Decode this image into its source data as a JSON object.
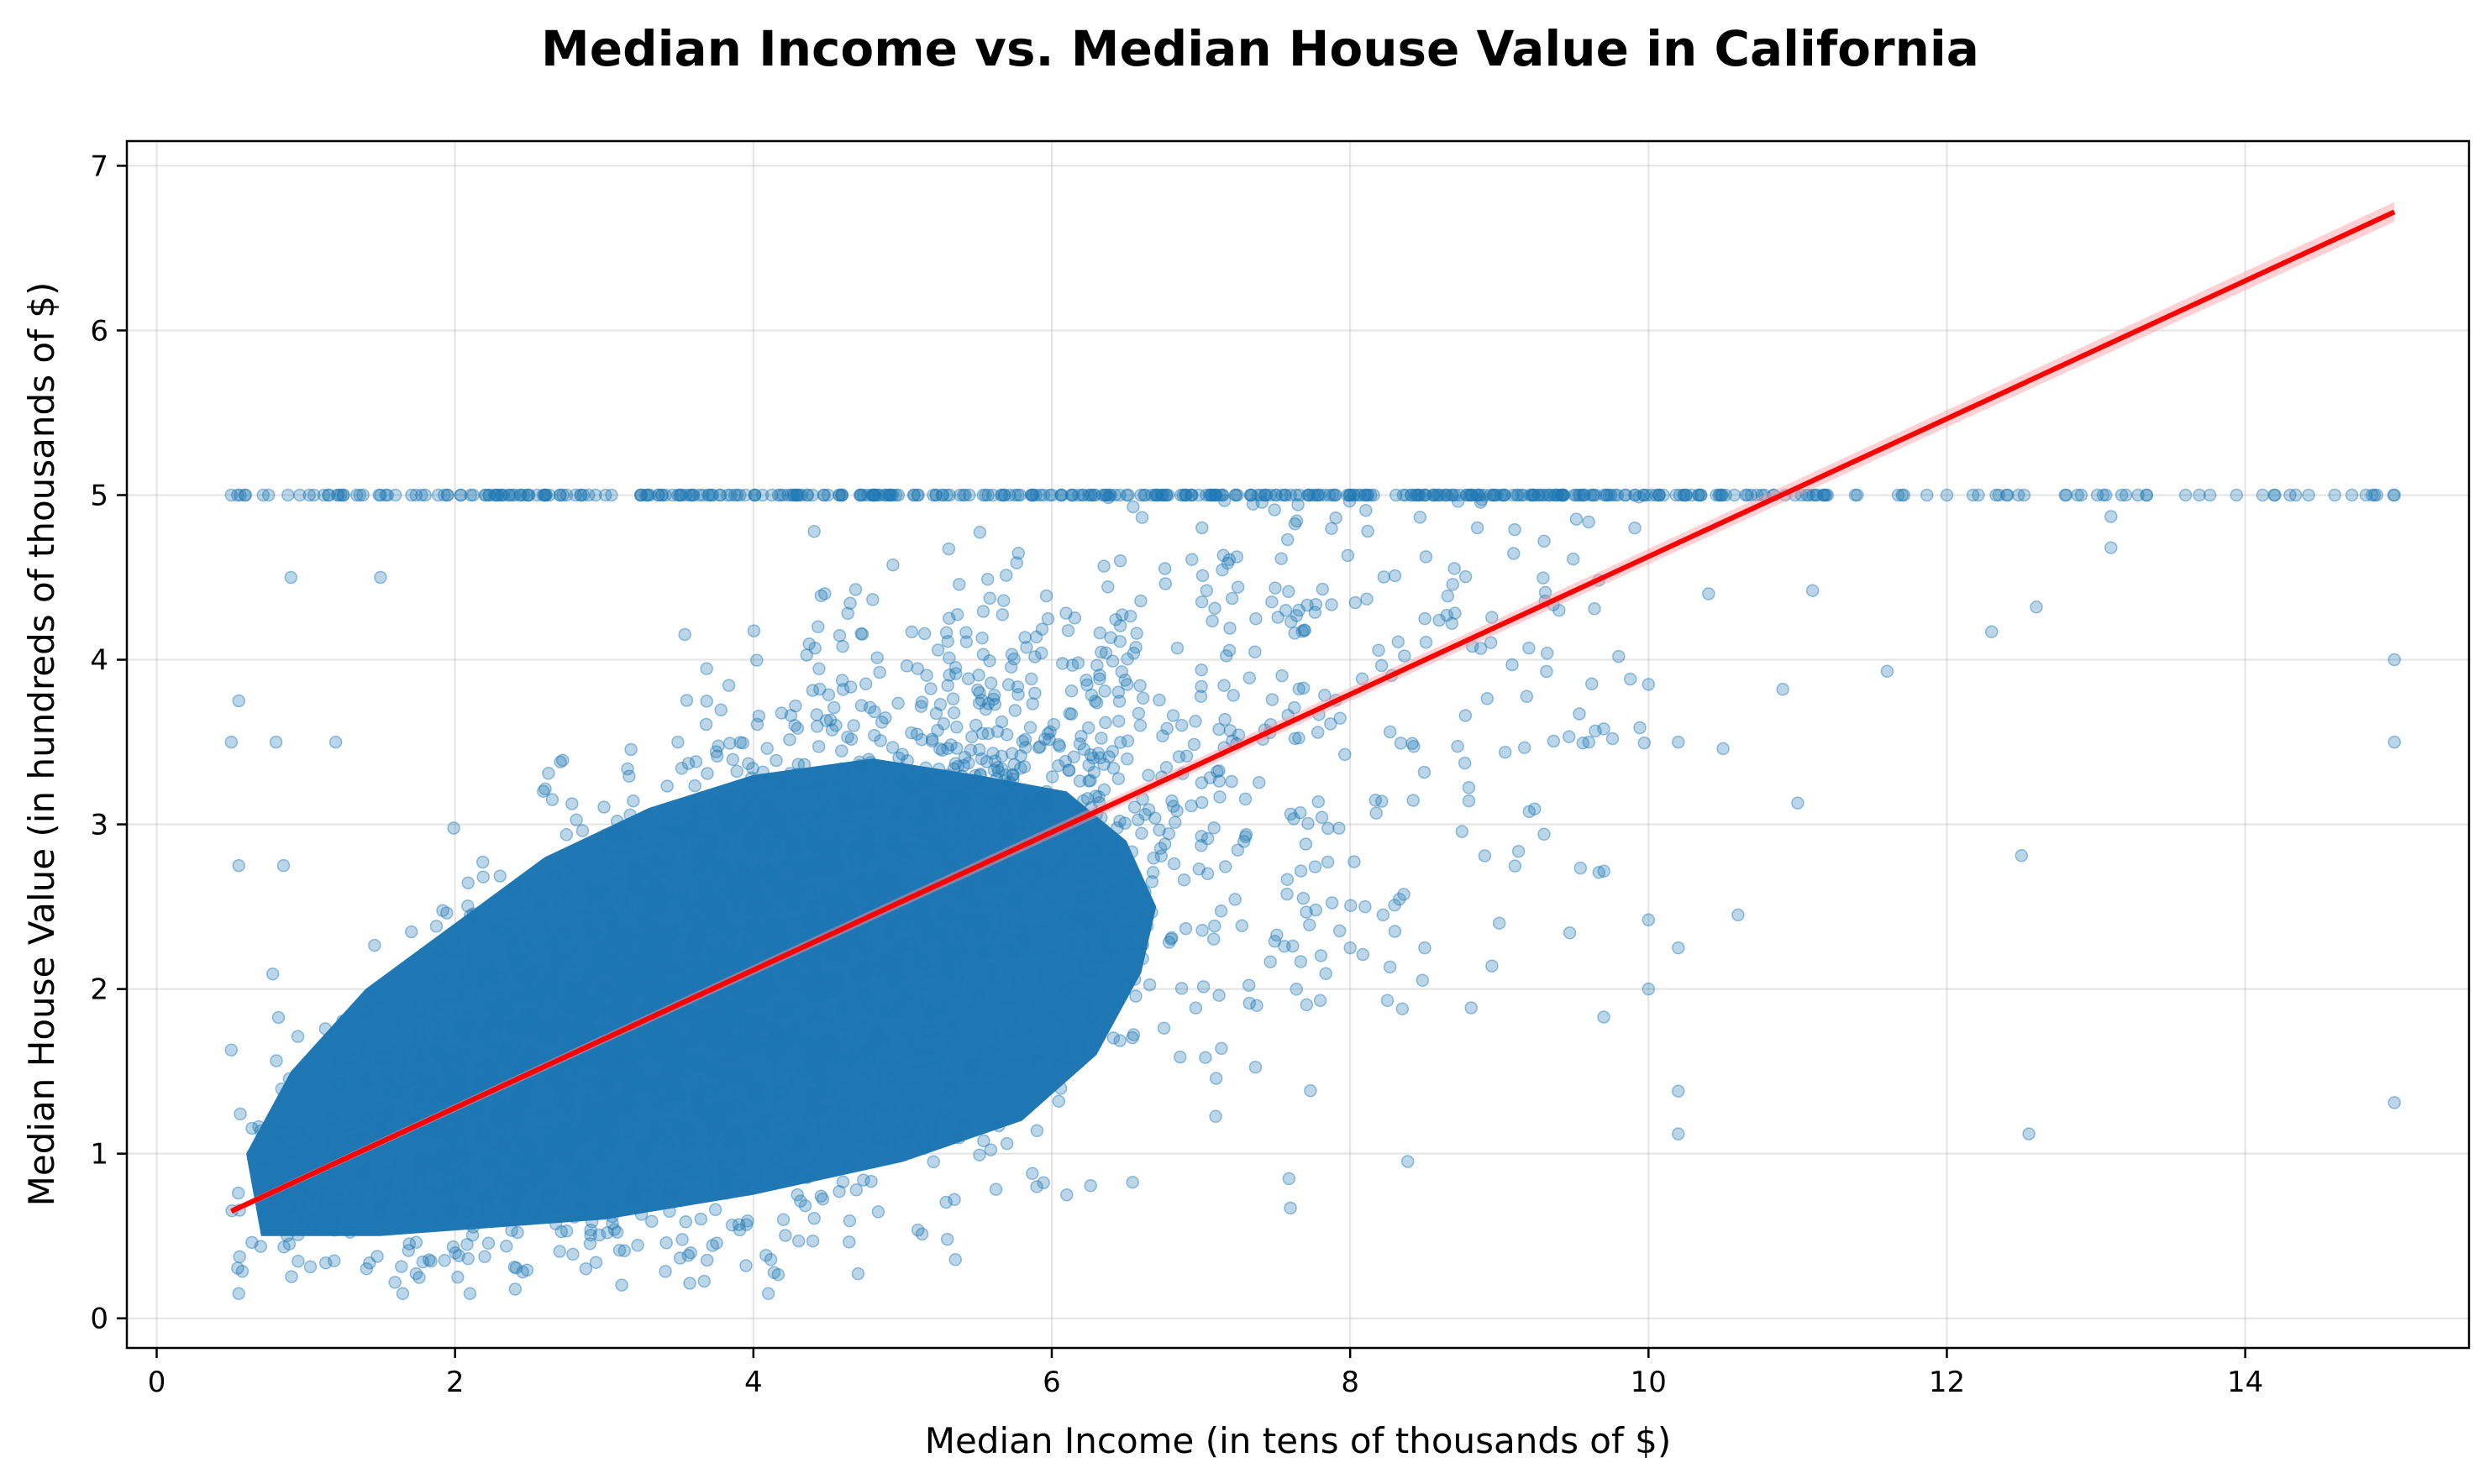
{
  "chart_data": {
    "type": "scatter",
    "title": "Median Income vs. Median House Value in California",
    "xlabel": "Median Income (in tens of thousands of $)",
    "ylabel": "Median House Value (in hundreds of thousands of $)",
    "xlim": [
      -0.2,
      15.5
    ],
    "ylim": [
      -0.18,
      7.15
    ],
    "xticks": [
      0,
      2,
      4,
      6,
      8,
      10,
      12,
      14
    ],
    "yticks": [
      0,
      1,
      2,
      3,
      4,
      5,
      6,
      7
    ],
    "grid": true,
    "point_color": "#1f77b4",
    "fit_color": "#ff0000",
    "fit_line": {
      "x": [
        0.5,
        15.0
      ],
      "y": [
        0.65,
        6.72
      ]
    },
    "point_cloud": {
      "description": "dense cluster of roughly 20,000 points",
      "x_range": [
        0.5,
        15.0
      ],
      "y_range": [
        0.15,
        5.0
      ],
      "cap_value": 5.0
    },
    "sample_points": [
      [
        0.5,
        5.0
      ],
      [
        0.75,
        5.0
      ],
      [
        0.88,
        5.0
      ],
      [
        1.15,
        5.0
      ],
      [
        1.25,
        5.0
      ],
      [
        1.6,
        5.0
      ],
      [
        1.8,
        5.0
      ],
      [
        1.95,
        5.0
      ],
      [
        2.4,
        5.0
      ],
      [
        11.4,
        5.0
      ],
      [
        11.7,
        5.0
      ],
      [
        12.0,
        5.0
      ],
      [
        12.4,
        5.0
      ],
      [
        12.9,
        5.0
      ],
      [
        13.2,
        5.0
      ],
      [
        13.6,
        5.0
      ],
      [
        14.3,
        5.0
      ],
      [
        14.6,
        5.0
      ],
      [
        15.0,
        5.0
      ],
      [
        0.9,
        4.5
      ],
      [
        1.5,
        4.5
      ],
      [
        0.55,
        3.75
      ],
      [
        0.5,
        3.5
      ],
      [
        0.8,
        3.5
      ],
      [
        1.2,
        3.5
      ],
      [
        0.55,
        2.75
      ],
      [
        0.85,
        2.75
      ],
      [
        0.5,
        1.63
      ],
      [
        0.55,
        0.15
      ],
      [
        1.65,
        0.15
      ],
      [
        2.1,
        0.15
      ],
      [
        3.95,
        0.32
      ],
      [
        4.1,
        0.15
      ],
      [
        5.3,
        0.48
      ],
      [
        6.1,
        0.75
      ],
      [
        7.6,
        0.67
      ],
      [
        9.7,
        1.83
      ],
      [
        10.0,
        2.0
      ],
      [
        10.0,
        2.42
      ],
      [
        10.2,
        2.25
      ],
      [
        10.2,
        1.38
      ],
      [
        10.2,
        1.12
      ],
      [
        10.6,
        2.45
      ],
      [
        9.3,
        2.94
      ],
      [
        9.0,
        2.4
      ],
      [
        8.95,
        2.14
      ],
      [
        8.5,
        2.25
      ],
      [
        8.3,
        2.35
      ],
      [
        8.0,
        2.25
      ],
      [
        8.1,
        2.5
      ],
      [
        8.35,
        1.88
      ],
      [
        8.25,
        1.93
      ],
      [
        7.8,
        1.93
      ],
      [
        11.0,
        3.13
      ],
      [
        10.9,
        3.82
      ],
      [
        10.5,
        3.46
      ],
      [
        10.2,
        3.5
      ],
      [
        10.0,
        3.85
      ],
      [
        11.6,
        3.93
      ],
      [
        12.3,
        4.17
      ],
      [
        12.6,
        4.32
      ],
      [
        13.1,
        4.68
      ],
      [
        13.1,
        4.87
      ],
      [
        11.1,
        4.42
      ],
      [
        12.5,
        2.81
      ],
      [
        12.55,
        1.12
      ],
      [
        15.0,
        1.31
      ],
      [
        15.0,
        3.5
      ],
      [
        15.0,
        4.0
      ],
      [
        9.3,
        4.72
      ],
      [
        9.6,
        3.5
      ],
      [
        9.7,
        3.58
      ],
      [
        9.8,
        4.02
      ],
      [
        9.4,
        4.3
      ]
    ]
  }
}
